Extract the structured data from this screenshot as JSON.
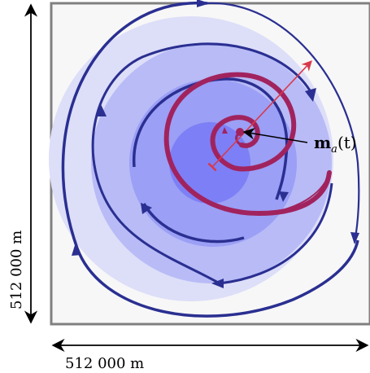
{
  "colors": {
    "domain_fill": "#f7f7f7",
    "domain_border": "#808080",
    "ring_outer": "#dddef8",
    "ring_second": "#b8bbf6",
    "ring_third": "#9b9ff5",
    "ring_inner": "#7d7ff6",
    "circulation_arrow": "#2a2f91",
    "spiral": "#a1235e",
    "trajectory_arrow": "#d83a4c",
    "label_pointer": "#000000"
  },
  "labels": {
    "center_vector_bold": "m",
    "center_vector_subscript": "a",
    "center_vector_argument": "(t)",
    "width_dimension": "512 000 m",
    "height_dimension": "512 000 m"
  }
}
